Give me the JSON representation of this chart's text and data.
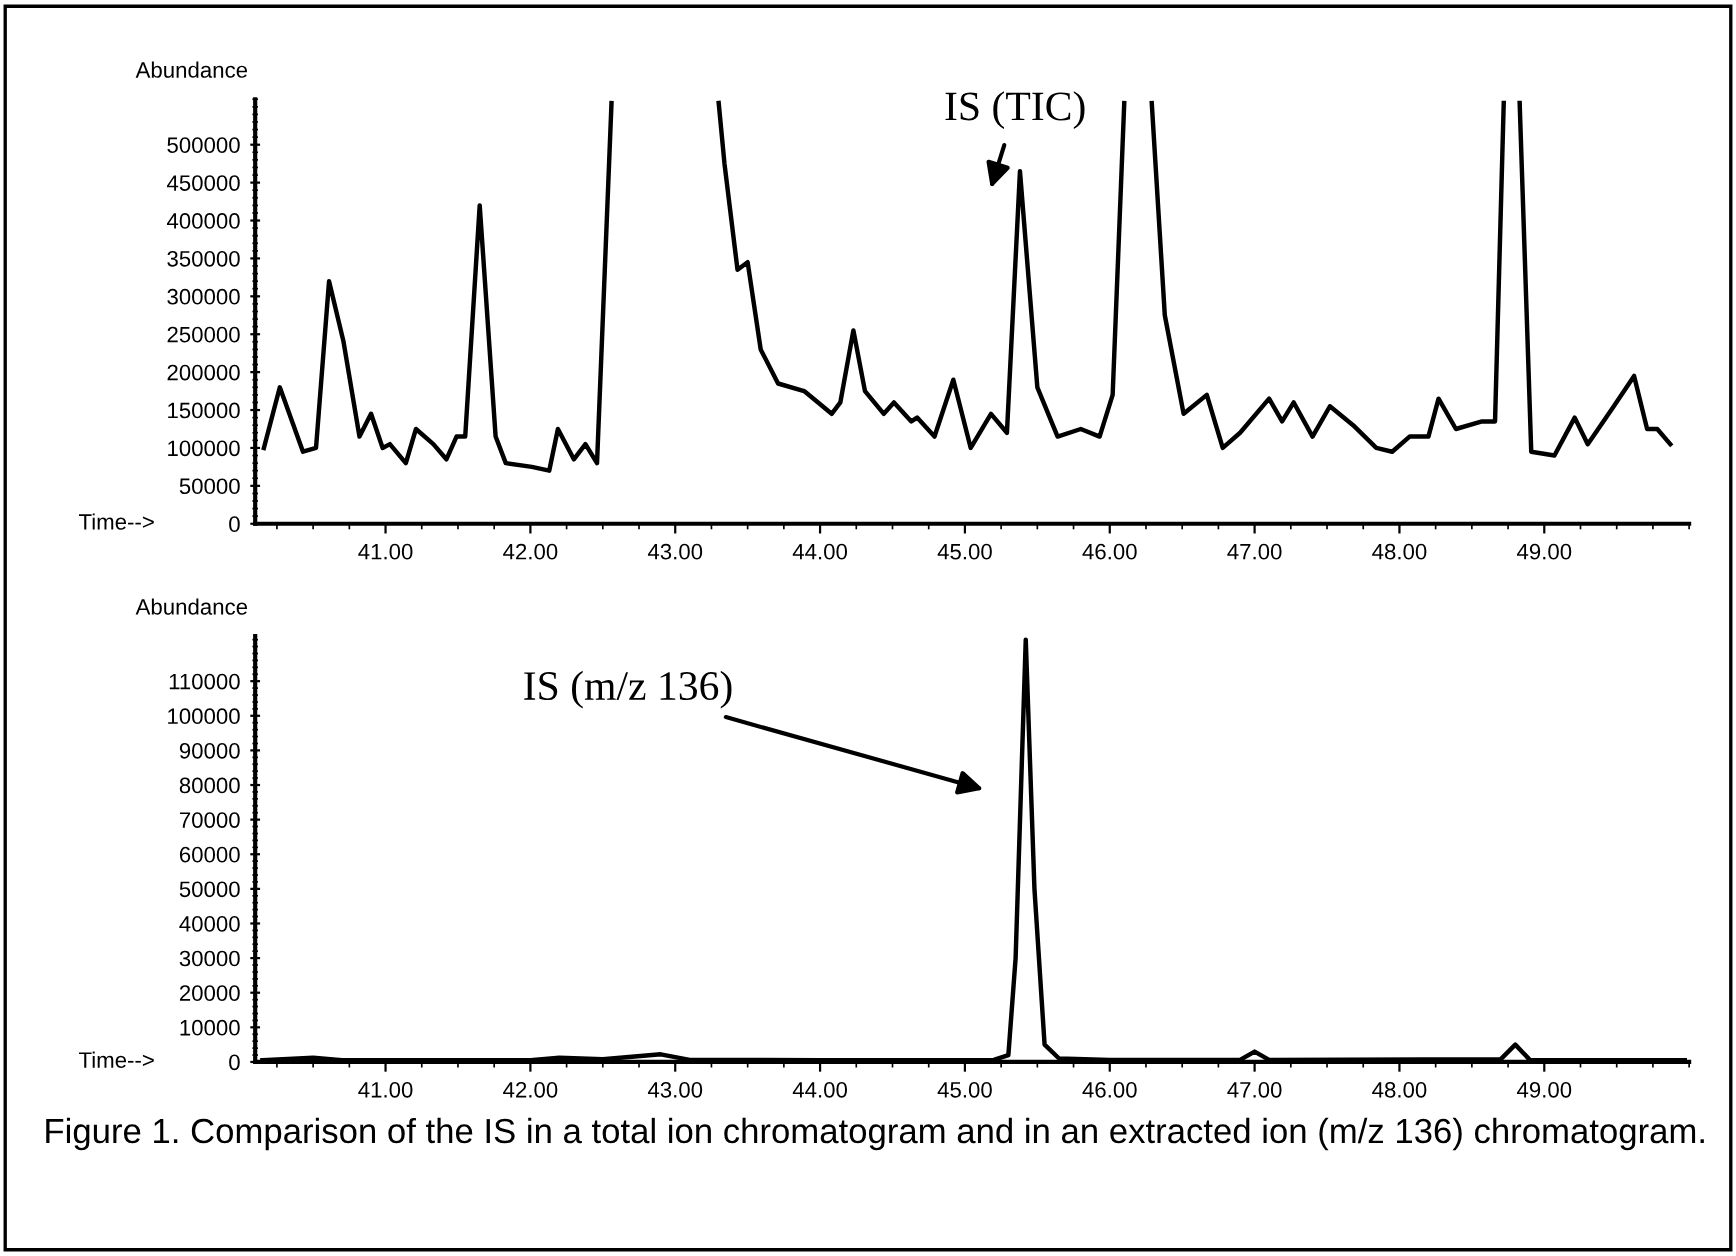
{
  "chart_data": [
    {
      "type": "line",
      "ylabel": "Abundance",
      "xlabel": "Time-->",
      "xlim": [
        40.1,
        50.0
      ],
      "ylim": [
        0,
        560000
      ],
      "xticks": [
        {
          "value": 41,
          "label": "41.00"
        },
        {
          "value": 42,
          "label": "42.00"
        },
        {
          "value": 43,
          "label": "43.00"
        },
        {
          "value": 44,
          "label": "44.00"
        },
        {
          "value": 45,
          "label": "45.00"
        },
        {
          "value": 46,
          "label": "46.00"
        },
        {
          "value": 47,
          "label": "47.00"
        },
        {
          "value": 48,
          "label": "48.00"
        },
        {
          "value": 49,
          "label": "49.00"
        }
      ],
      "yticks": [
        0,
        50000,
        100000,
        150000,
        200000,
        250000,
        300000,
        350000,
        400000,
        450000,
        500000
      ],
      "grid": false,
      "legend": false,
      "marker": "none",
      "line_style": "solid",
      "annotations": [
        "IS (TIC)"
      ],
      "series": [
        {
          "color": "#000000",
          "x": [
            40.16,
            40.27,
            40.43,
            40.52,
            40.61,
            40.71,
            40.82,
            40.9,
            40.98,
            41.03,
            41.14,
            41.21,
            41.33,
            41.42,
            41.49,
            41.55,
            41.65,
            41.76,
            41.83,
            42.01,
            42.13,
            42.19,
            42.3,
            42.38,
            42.46,
            42.56,
            42.9,
            43.3,
            43.34,
            43.43,
            43.5,
            43.59,
            43.71,
            43.89,
            44.08,
            44.14,
            44.23,
            44.31,
            44.44,
            44.51,
            44.63,
            44.67,
            44.79,
            44.92,
            45.04,
            45.18,
            45.29,
            45.38,
            45.5,
            45.64,
            45.8,
            45.93,
            46.02,
            46.1,
            46.2,
            46.29,
            46.38,
            46.51,
            46.67,
            46.78,
            46.9,
            47.1,
            47.19,
            47.27,
            47.4,
            47.52,
            47.68,
            47.84,
            47.95,
            48.07,
            48.2,
            48.27,
            48.39,
            48.57,
            48.66,
            48.72,
            48.78,
            48.83,
            48.91,
            49.07,
            49.21,
            49.3,
            49.48,
            49.62,
            49.71,
            49.78,
            49.87
          ],
          "values": [
            100000,
            180000,
            95000,
            100000,
            320000,
            240000,
            115000,
            145000,
            100000,
            105000,
            80000,
            125000,
            105000,
            85000,
            115000,
            115000,
            420000,
            115000,
            80000,
            75000,
            70000,
            125000,
            85000,
            105000,
            80000,
            555000,
            null,
            555000,
            475000,
            335000,
            345000,
            230000,
            185000,
            175000,
            145000,
            160000,
            255000,
            175000,
            145000,
            160000,
            135000,
            140000,
            115000,
            190000,
            100000,
            145000,
            120000,
            465000,
            180000,
            115000,
            125000,
            115000,
            170000,
            555000,
            null,
            555000,
            275000,
            145000,
            170000,
            100000,
            120000,
            165000,
            135000,
            160000,
            115000,
            155000,
            130000,
            100000,
            95000,
            115000,
            115000,
            165000,
            125000,
            135000,
            135000,
            555000,
            null,
            555000,
            95000,
            90000,
            140000,
            105000,
            155000,
            195000,
            125000,
            125000,
            105000
          ]
        }
      ]
    },
    {
      "type": "line",
      "ylabel": "Abundance",
      "xlabel": "Time-->",
      "xlim": [
        40.1,
        50.0
      ],
      "ylim": [
        0,
        123000
      ],
      "xticks": [
        {
          "value": 41,
          "label": "41.00"
        },
        {
          "value": 42,
          "label": "42.00"
        },
        {
          "value": 43,
          "label": "43.00"
        },
        {
          "value": 44,
          "label": "44.00"
        },
        {
          "value": 45,
          "label": "45.00"
        },
        {
          "value": 46,
          "label": "46.00"
        },
        {
          "value": 47,
          "label": "47.00"
        },
        {
          "value": 48,
          "label": "48.00"
        },
        {
          "value": 49,
          "label": "49.00"
        }
      ],
      "yticks": [
        0,
        10000,
        20000,
        30000,
        40000,
        50000,
        60000,
        70000,
        80000,
        90000,
        100000,
        110000
      ],
      "grid": false,
      "legend": false,
      "marker": "none",
      "line_style": "solid",
      "annotations": [
        "IS (m/z 136)",
        "Figure 1. Comparison of the IS in a total ion chromatogram and in an extracted ion (m/z 136) chromatogram."
      ],
      "series": [
        {
          "color": "#000000",
          "x": [
            40.15,
            40.5,
            40.7,
            42.0,
            42.2,
            42.5,
            42.9,
            43.1,
            44.0,
            45.2,
            45.3,
            45.35,
            45.42,
            45.48,
            45.55,
            45.65,
            46.0,
            46.9,
            47.0,
            47.1,
            48.7,
            48.8,
            48.9,
            49.97
          ],
          "values": [
            500,
            1200,
            500,
            500,
            1200,
            800,
            2200,
            600,
            500,
            600,
            2000,
            30000,
            122000,
            50000,
            5000,
            1000,
            600,
            600,
            3000,
            600,
            800,
            5000,
            600,
            500
          ]
        }
      ]
    }
  ]
}
